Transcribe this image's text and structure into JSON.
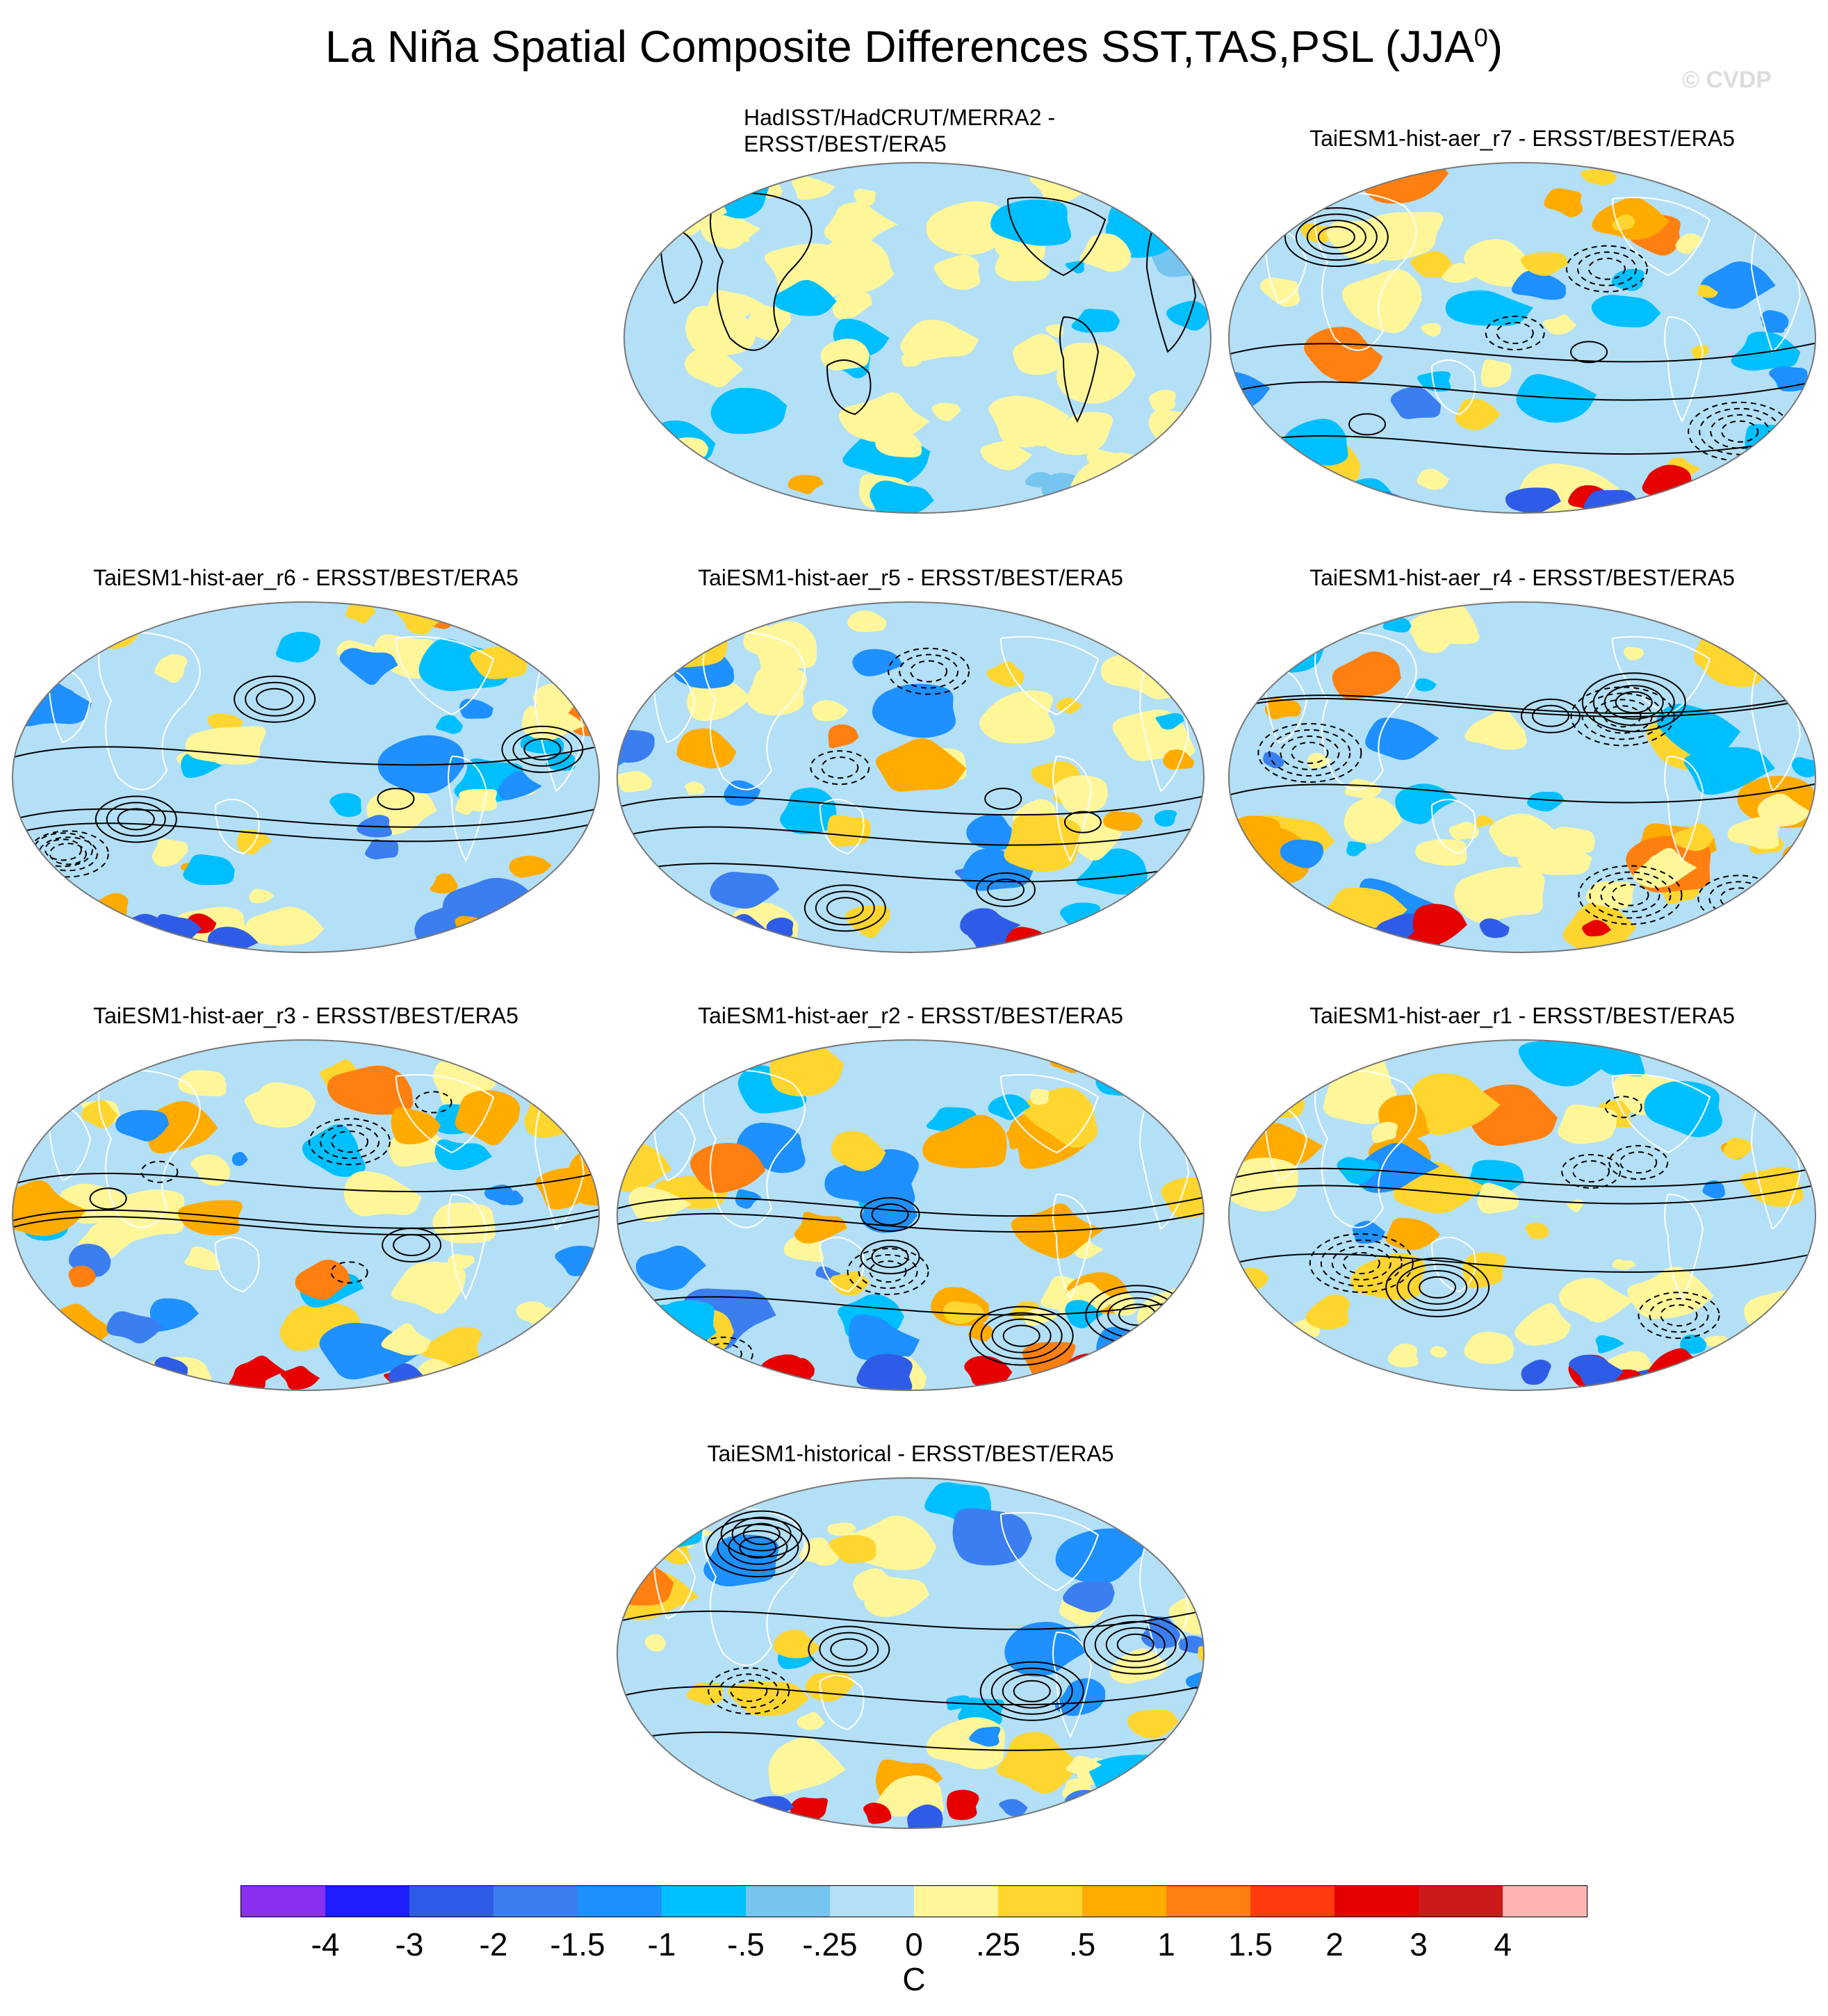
{
  "title": {
    "main": "La Niña Spatial Composite Differences SST,TAS,PSL (JJA",
    "superscript": "0",
    "close": ")"
  },
  "copyright": "© CVDP",
  "panels": [
    {
      "id": "obs",
      "title_line1": "HadISST/HadCRUT/MERRA2 -",
      "title_line2": "ERSST/BEST/ERA5"
    },
    {
      "id": "r7",
      "title": "TaiESM1-hist-aer_r7 - ERSST/BEST/ERA5"
    },
    {
      "id": "r6",
      "title": "TaiESM1-hist-aer_r6 - ERSST/BEST/ERA5"
    },
    {
      "id": "r5",
      "title": "TaiESM1-hist-aer_r5 - ERSST/BEST/ERA5"
    },
    {
      "id": "r4",
      "title": "TaiESM1-hist-aer_r4 - ERSST/BEST/ERA5"
    },
    {
      "id": "r3",
      "title": "TaiESM1-hist-aer_r3 - ERSST/BEST/ERA5"
    },
    {
      "id": "r2",
      "title": "TaiESM1-hist-aer_r2 - ERSST/BEST/ERA5"
    },
    {
      "id": "r1",
      "title": "TaiESM1-hist-aer_r1 - ERSST/BEST/ERA5"
    },
    {
      "id": "historical",
      "title": "TaiESM1-historical - ERSST/BEST/ERA5"
    }
  ],
  "colorbar": {
    "colors": [
      "#8b2ff0",
      "#1d1dff",
      "#2f5ce6",
      "#3b7ef0",
      "#1e90ff",
      "#00bfff",
      "#75c5f0",
      "#b3e0f7",
      "#fff69a",
      "#ffd530",
      "#ffab00",
      "#ff7f10",
      "#ff3b10",
      "#e60000",
      "#cc1a1a",
      "#ffb4b4"
    ],
    "labels": [
      "-4",
      "-3",
      "-2",
      "-1.5",
      "-1",
      "-.5",
      "-.25",
      "0",
      ".25",
      ".5",
      "1",
      "1.5",
      "2",
      "3",
      "4"
    ],
    "units": "C"
  }
}
